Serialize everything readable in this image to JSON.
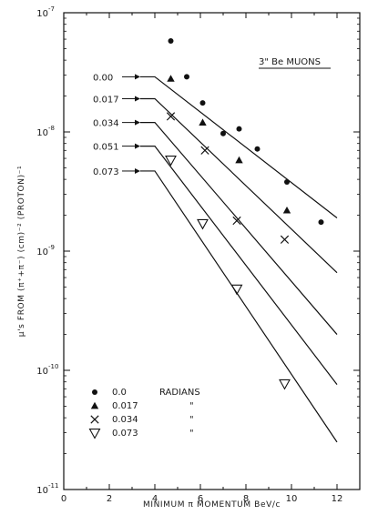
{
  "chart_data": {
    "type": "scatter",
    "title": "3\" Be MUONS",
    "xlabel": "MINIMUM π MOMENTUM BeV/c",
    "ylabel": "μ's FROM (π⁺+π⁻) (cm)⁻² (PROTON)⁻¹",
    "xlim": [
      0,
      13
    ],
    "ylim": [
      1e-11,
      1e-07
    ],
    "yscale": "log",
    "xticks": [
      0,
      2,
      4,
      6,
      8,
      10,
      12
    ],
    "yticks": [
      {
        "value": 1e-07,
        "label": "10",
        "exp": "-7"
      },
      {
        "value": 1e-08,
        "label": "10",
        "exp": "-8"
      },
      {
        "value": 1e-09,
        "label": "10",
        "exp": "-9"
      },
      {
        "value": 1e-10,
        "label": "10",
        "exp": "-10"
      },
      {
        "value": 1e-11,
        "label": "10",
        "exp": "-11"
      }
    ],
    "grid": false,
    "legend_position": "bottom-left",
    "legend": [
      {
        "marker": "circle",
        "label": "0.0",
        "unit": "RADIANS"
      },
      {
        "marker": "triangle",
        "label": "0.017",
        "unit": "\""
      },
      {
        "marker": "x",
        "label": "0.034",
        "unit": "\""
      },
      {
        "marker": "open-triangle",
        "label": "0.073",
        "unit": "\""
      }
    ],
    "series": [
      {
        "marker": "circle",
        "x": [
          4.7,
          5.4,
          6.1,
          7.0,
          7.7,
          8.5,
          9.8,
          11.3
        ],
        "y": [
          5.8e-08,
          2.9e-08,
          1.75e-08,
          9.7e-09,
          1.06e-08,
          7.2e-09,
          3.8e-09,
          1.75e-09
        ]
      },
      {
        "marker": "triangle",
        "x": [
          4.7,
          6.1,
          7.7,
          9.8
        ],
        "y": [
          2.8e-08,
          1.2e-08,
          5.8e-09,
          2.2e-09
        ]
      },
      {
        "marker": "x",
        "x": [
          4.7,
          6.2,
          7.6,
          9.7
        ],
        "y": [
          1.35e-08,
          7e-09,
          1.8e-09,
          1.25e-09
        ]
      },
      {
        "marker": "open-triangle",
        "x": [
          4.7,
          6.1,
          7.6,
          9.7
        ],
        "y": [
          5.8e-09,
          1.7e-09,
          4.8e-10,
          7.7e-11
        ]
      }
    ],
    "curves": [
      {
        "label": "0.00",
        "x": [
          4.0,
          12.0
        ],
        "y": [
          2.9e-08,
          1.9e-09
        ]
      },
      {
        "label": "0.017",
        "x": [
          4.0,
          12.0
        ],
        "y": [
          1.9e-08,
          6.6e-10
        ]
      },
      {
        "label": "0.034",
        "x": [
          4.0,
          12.0
        ],
        "y": [
          1.2e-08,
          2e-10
        ]
      },
      {
        "label": "0.051",
        "x": [
          4.0,
          12.0
        ],
        "y": [
          7.6e-09,
          7.6e-11
        ]
      },
      {
        "label": "0.073",
        "x": [
          4.0,
          12.0
        ],
        "y": [
          4.7e-09,
          2.5e-11
        ]
      }
    ]
  }
}
